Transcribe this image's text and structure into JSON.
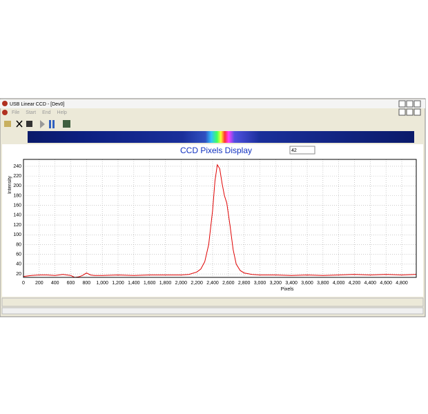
{
  "window": {
    "title": "USB Linear CCD - [Dev0]",
    "menu": [
      "File",
      "Start",
      "End",
      "Help"
    ]
  },
  "display_value": "42",
  "chart_data": {
    "type": "line",
    "title": "CCD Pixels Display",
    "x_label": "Pixels",
    "y_label": "Intensity",
    "xlim": [
      0,
      4984
    ],
    "ylim": [
      13,
      254
    ],
    "xticks": [
      0,
      200,
      400,
      600,
      800,
      {
        "value": 1000,
        "label": "1,000"
      },
      {
        "value": 1200,
        "label": "1,200"
      },
      {
        "value": 1400,
        "label": "1,400"
      },
      {
        "value": 1600,
        "label": "1,600"
      },
      {
        "value": 1800,
        "label": "1,800"
      },
      {
        "value": 2000,
        "label": "2,000"
      },
      {
        "value": 2200,
        "label": "2,200"
      },
      {
        "value": 2400,
        "label": "2,400"
      },
      {
        "value": 2600,
        "label": "2,600"
      },
      {
        "value": 2800,
        "label": "2,800"
      },
      {
        "value": 3000,
        "label": "3,000"
      },
      {
        "value": 3200,
        "label": "3,200"
      },
      {
        "value": 3400,
        "label": "3,400"
      },
      {
        "value": 3600,
        "label": "3,600"
      },
      {
        "value": 3800,
        "label": "3,800"
      },
      {
        "value": 4000,
        "label": "4,000"
      },
      {
        "value": 4200,
        "label": "4,200"
      },
      {
        "value": 4400,
        "label": "4,400"
      },
      {
        "value": 4600,
        "label": "4,600"
      },
      {
        "value": 4800,
        "label": "4,800"
      }
    ],
    "yticks": [
      20,
      40,
      60,
      80,
      100,
      120,
      140,
      160,
      180,
      200,
      220,
      240
    ],
    "grid": true,
    "series": [
      {
        "name": "Intensity",
        "color": "#e00000",
        "x": [
          0,
          100,
          200,
          300,
          400,
          500,
          600,
          650,
          700,
          750,
          800,
          850,
          900,
          1000,
          1200,
          1400,
          1600,
          1800,
          2000,
          2100,
          2200,
          2250,
          2300,
          2350,
          2400,
          2430,
          2460,
          2490,
          2520,
          2550,
          2580,
          2620,
          2660,
          2700,
          2750,
          2800,
          2900,
          3000,
          3200,
          3400,
          3600,
          3800,
          4000,
          4200,
          4400,
          4600,
          4800,
          4980
        ],
        "values": [
          15,
          17,
          18,
          18,
          17,
          19,
          17,
          13,
          14,
          17,
          22,
          18,
          17,
          17,
          18,
          17,
          18,
          18,
          18,
          19,
          24,
          30,
          45,
          80,
          150,
          210,
          243,
          235,
          205,
          180,
          165,
          120,
          70,
          40,
          27,
          22,
          19,
          18,
          18,
          17,
          18,
          17,
          18,
          19,
          18,
          19,
          18,
          19
        ]
      }
    ]
  }
}
